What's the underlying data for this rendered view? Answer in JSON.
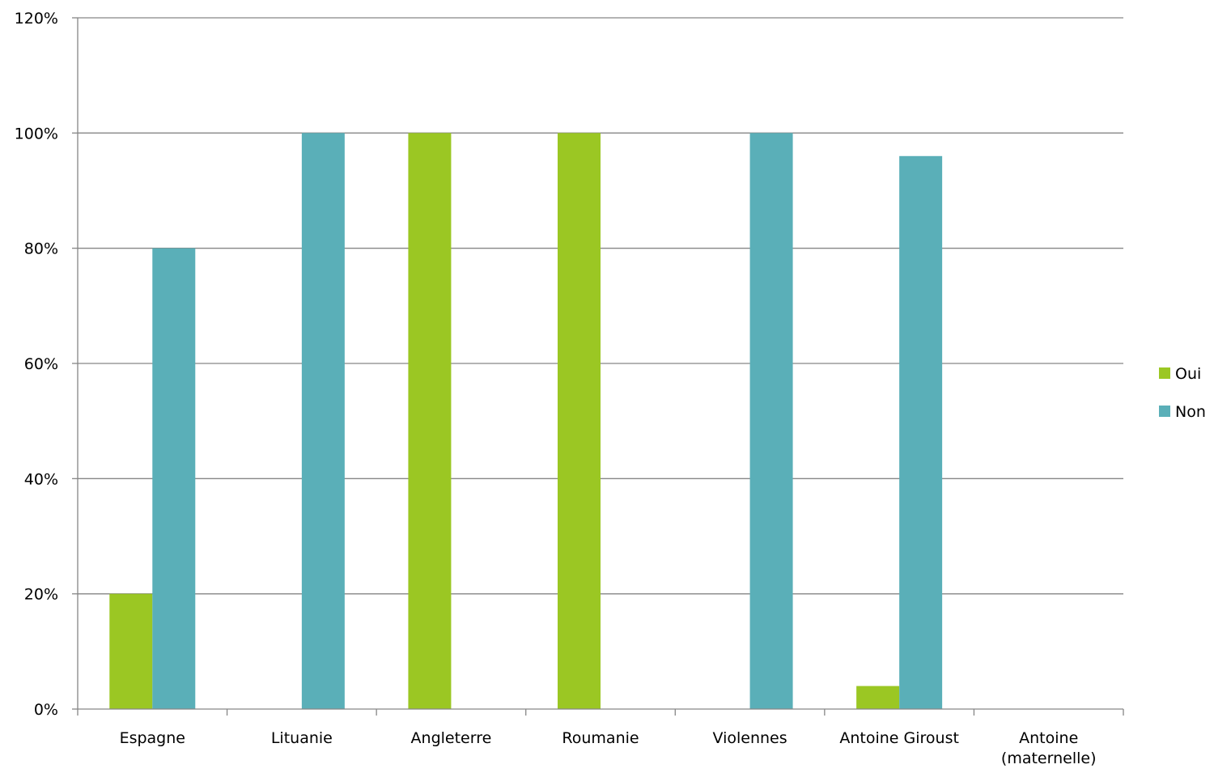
{
  "chart_data": {
    "type": "bar",
    "title": "",
    "xlabel": "",
    "ylabel": "",
    "categories": [
      [
        "Espagne"
      ],
      [
        "Lituanie"
      ],
      [
        "Angleterre"
      ],
      [
        "Roumanie"
      ],
      [
        "Violennes"
      ],
      [
        "Antoine Giroust"
      ],
      [
        "Antoine",
        "(maternelle)"
      ]
    ],
    "series": [
      {
        "name": "Oui",
        "color": "#9BC723",
        "values": [
          20,
          0,
          100,
          100,
          0,
          4,
          0
        ]
      },
      {
        "name": "Non",
        "color": "#5AAFB8",
        "values": [
          80,
          100,
          0,
          0,
          100,
          96,
          0
        ]
      }
    ],
    "ylim": [
      0,
      120
    ],
    "yticks": [
      0,
      20,
      40,
      60,
      80,
      100,
      120
    ],
    "ytick_labels": [
      "0%",
      "20%",
      "40%",
      "60%",
      "80%",
      "100%",
      "120%"
    ],
    "grid": true,
    "legend_position": "right"
  }
}
